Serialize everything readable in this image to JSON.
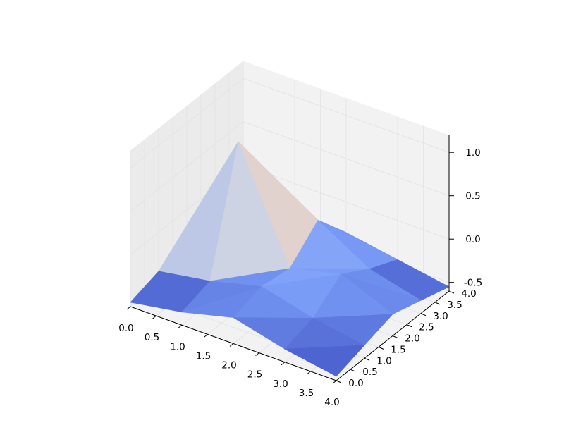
{
  "chart_data": {
    "type": "surface3d",
    "title": "",
    "xlabel": "",
    "ylabel": "",
    "zlabel": "",
    "colormap": "coolwarm",
    "x": [
      0,
      1,
      2,
      3,
      4
    ],
    "y": [
      0,
      1,
      2,
      3,
      4
    ],
    "z": [
      [
        -0.55,
        -0.45,
        -0.3,
        -0.45,
        -0.55
      ],
      [
        -0.45,
        -0.35,
        1.0,
        -0.2,
        -0.45
      ],
      [
        -0.3,
        -0.2,
        -0.25,
        0.05,
        -0.35
      ],
      [
        -0.45,
        -0.35,
        -0.1,
        -0.3,
        -0.45
      ],
      [
        -0.55,
        -0.45,
        -0.35,
        -0.45,
        -0.55
      ]
    ],
    "xlim": [
      0,
      4
    ],
    "ylim": [
      0,
      4
    ],
    "zlim": [
      -0.6,
      1.2
    ],
    "xticks": [
      "0.0",
      "0.5",
      "1.0",
      "1.5",
      "2.0",
      "2.5",
      "3.0",
      "3.5",
      "4.0"
    ],
    "yticks": [
      "0.0",
      "0.5",
      "1.0",
      "1.5",
      "2.0",
      "2.5",
      "3.0",
      "3.5",
      "4.0"
    ],
    "zticks": [
      "-0.5",
      "0.0",
      "0.5",
      "1.0"
    ],
    "grid": true,
    "colors": {
      "pane": "#f2f2f2",
      "pane_side": "#ebebeb",
      "grid": "#e2e2e2"
    }
  }
}
